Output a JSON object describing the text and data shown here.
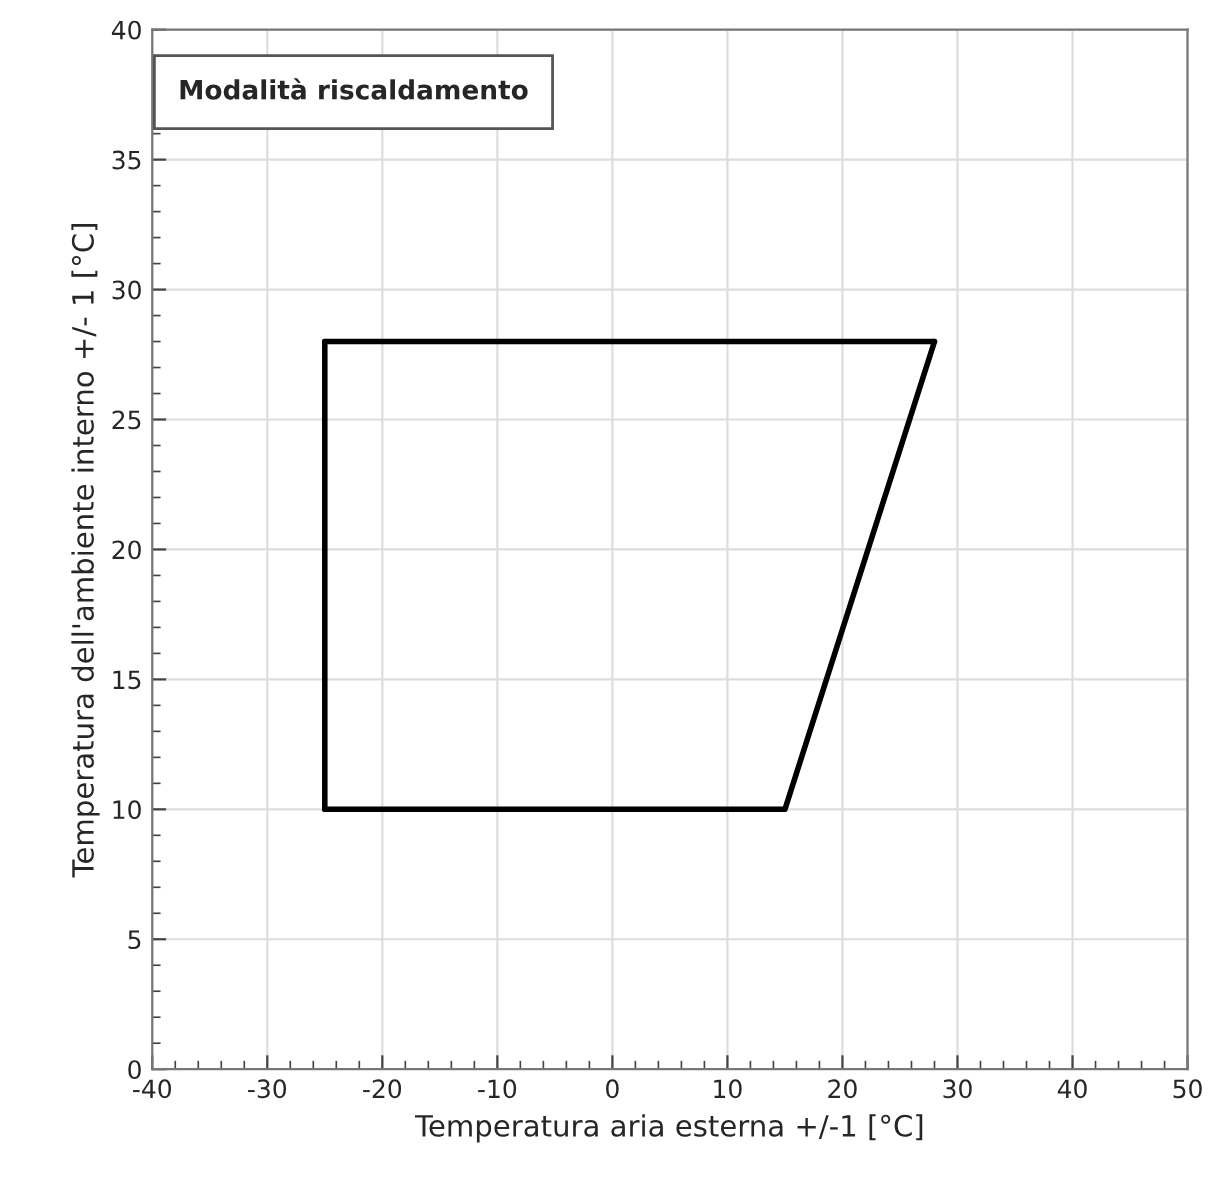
{
  "chart_data": {
    "type": "line",
    "xlabel": "Temperatura aria esterna +/-1 [°C]",
    "ylabel": "Temperatura dell'ambiente interno +/- 1 [°C]",
    "annotations": [
      "Modalità riscaldamento"
    ],
    "series": [
      {
        "color": "#000000",
        "x": [
          -25,
          15,
          28
        ],
        "values": [
          10,
          10,
          28
        ]
      },
      {
        "color": "#000000",
        "x": [
          -25,
          28
        ],
        "values": [
          28,
          28
        ]
      },
      {
        "color": "#000000",
        "x": [
          -25,
          -25
        ],
        "values": [
          10,
          28
        ]
      }
    ],
    "xlim": [
      -40,
      50
    ],
    "xticks": [
      -40,
      -30,
      -20,
      -10,
      0,
      10,
      20,
      30,
      40,
      50
    ],
    "ylim": [
      0,
      40
    ],
    "yticks": [
      0,
      5,
      10,
      15,
      20,
      25,
      30,
      35,
      40
    ],
    "grid": true,
    "legend": false,
    "marker": "none",
    "line_style": "solid"
  }
}
